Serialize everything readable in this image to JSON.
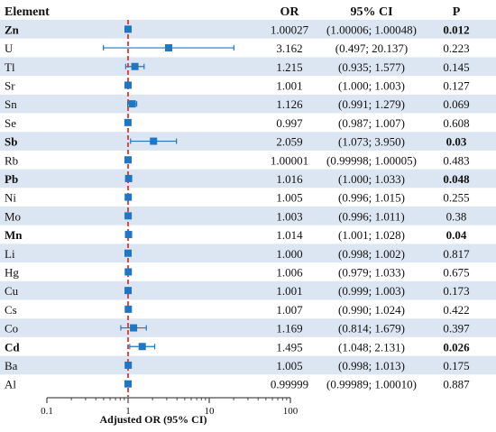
{
  "chart_data": {
    "type": "forest",
    "headers": {
      "element": "Element",
      "or": "OR",
      "ci": "95% CI",
      "p": "P"
    },
    "xlabel": "Adjusted OR (95% CI)",
    "xscale": "log",
    "xlim": [
      0.1,
      100
    ],
    "xticks": [
      "0.1",
      "1",
      "10",
      "100"
    ],
    "reference_line": 1,
    "reference_line_color": "#e8342b",
    "marker_color": "#1f77c4",
    "band_color": "#dce6f2",
    "rows": [
      {
        "element": "Zn",
        "or": 1.00027,
        "lo": 1.00006,
        "hi": 1.00048,
        "or_text": "1.00027",
        "ci_text": "(1.00006; 1.00048)",
        "p_text": "0.012",
        "significant": true
      },
      {
        "element": "U",
        "or": 3.162,
        "lo": 0.497,
        "hi": 20.137,
        "or_text": "3.162",
        "ci_text": "(0.497; 20.137)",
        "p_text": "0.223",
        "significant": false
      },
      {
        "element": "Tl",
        "or": 1.215,
        "lo": 0.935,
        "hi": 1.577,
        "or_text": "1.215",
        "ci_text": "(0.935; 1.577)",
        "p_text": "0.145",
        "significant": false
      },
      {
        "element": "Sr",
        "or": 1.001,
        "lo": 1.0,
        "hi": 1.003,
        "or_text": "1.001",
        "ci_text": "(1.000; 1.003)",
        "p_text": "0.127",
        "significant": false
      },
      {
        "element": "Sn",
        "or": 1.126,
        "lo": 0.991,
        "hi": 1.279,
        "or_text": "1.126",
        "ci_text": "(0.991; 1.279)",
        "p_text": "0.069",
        "significant": false
      },
      {
        "element": "Se",
        "or": 0.997,
        "lo": 0.987,
        "hi": 1.007,
        "or_text": "0.997",
        "ci_text": "(0.987; 1.007)",
        "p_text": "0.608",
        "significant": false
      },
      {
        "element": "Sb",
        "or": 2.059,
        "lo": 1.073,
        "hi": 3.95,
        "or_text": "2.059",
        "ci_text": "(1.073; 3.950)",
        "p_text": "0.03",
        "significant": true
      },
      {
        "element": "Rb",
        "or": 1.00001,
        "lo": 0.99998,
        "hi": 1.00005,
        "or_text": "1.00001",
        "ci_text": "(0.99998; 1.00005)",
        "p_text": "0.483",
        "significant": false
      },
      {
        "element": "Pb",
        "or": 1.016,
        "lo": 1.0,
        "hi": 1.033,
        "or_text": "1.016",
        "ci_text": "(1.000; 1.033)",
        "p_text": "0.048",
        "significant": true
      },
      {
        "element": "Ni",
        "or": 1.005,
        "lo": 0.996,
        "hi": 1.015,
        "or_text": "1.005",
        "ci_text": "(0.996; 1.015)",
        "p_text": "0.255",
        "significant": false
      },
      {
        "element": "Mo",
        "or": 1.003,
        "lo": 0.996,
        "hi": 1.011,
        "or_text": "1.003",
        "ci_text": "(0.996; 1.011)",
        "p_text": "0.38",
        "significant": false
      },
      {
        "element": "Mn",
        "or": 1.014,
        "lo": 1.001,
        "hi": 1.028,
        "or_text": "1.014",
        "ci_text": "(1.001; 1.028)",
        "p_text": "0.04",
        "significant": true
      },
      {
        "element": "Li",
        "or": 1.0,
        "lo": 0.998,
        "hi": 1.002,
        "or_text": "1.000",
        "ci_text": "(0.998; 1.002)",
        "p_text": "0.817",
        "significant": false
      },
      {
        "element": "Hg",
        "or": 1.006,
        "lo": 0.979,
        "hi": 1.033,
        "or_text": "1.006",
        "ci_text": "(0.979; 1.033)",
        "p_text": "0.675",
        "significant": false
      },
      {
        "element": "Cu",
        "or": 1.001,
        "lo": 0.999,
        "hi": 1.003,
        "or_text": "1.001",
        "ci_text": "(0.999; 1.003)",
        "p_text": "0.173",
        "significant": false
      },
      {
        "element": "Cs",
        "or": 1.007,
        "lo": 0.99,
        "hi": 1.024,
        "or_text": "1.007",
        "ci_text": "(0.990; 1.024)",
        "p_text": "0.422",
        "significant": false
      },
      {
        "element": "Co",
        "or": 1.169,
        "lo": 0.814,
        "hi": 1.679,
        "or_text": "1.169",
        "ci_text": "(0.814; 1.679)",
        "p_text": "0.397",
        "significant": false
      },
      {
        "element": "Cd",
        "or": 1.495,
        "lo": 1.048,
        "hi": 2.131,
        "or_text": "1.495",
        "ci_text": "(1.048; 2.131)",
        "p_text": "0.026",
        "significant": true
      },
      {
        "element": "Ba",
        "or": 1.005,
        "lo": 0.998,
        "hi": 1.013,
        "or_text": "1.005",
        "ci_text": "(0.998; 1.013)",
        "p_text": "0.175",
        "significant": false
      },
      {
        "element": "Al",
        "or": 0.99999,
        "lo": 0.99989,
        "hi": 1.0001,
        "or_text": "0.99999",
        "ci_text": "(0.99989; 1.00010)",
        "p_text": "0.887",
        "significant": false
      }
    ]
  }
}
